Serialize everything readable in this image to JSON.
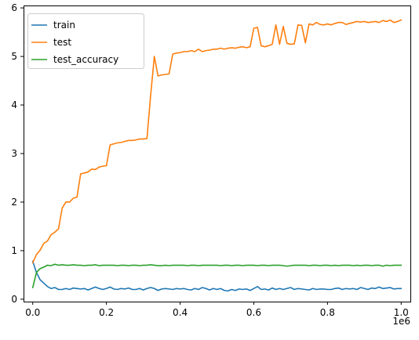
{
  "chart_data": {
    "type": "line",
    "title": "",
    "xlabel": "",
    "ylabel": "",
    "x_offset_label": "1e6",
    "xlim": [
      -25000,
      1025000
    ],
    "ylim": [
      -0.05,
      6.05
    ],
    "xticks": [
      {
        "value": 0,
        "label": "0.0"
      },
      {
        "value": 200000,
        "label": "0.2"
      },
      {
        "value": 400000,
        "label": "0.4"
      },
      {
        "value": 600000,
        "label": "0.6"
      },
      {
        "value": 800000,
        "label": "0.8"
      },
      {
        "value": 1000000,
        "label": "1.0"
      }
    ],
    "yticks": [
      {
        "value": 0,
        "label": "0"
      },
      {
        "value": 1,
        "label": "1"
      },
      {
        "value": 2,
        "label": "2"
      },
      {
        "value": 3,
        "label": "3"
      },
      {
        "value": 4,
        "label": "4"
      },
      {
        "value": 5,
        "label": "5"
      },
      {
        "value": 6,
        "label": "6"
      }
    ],
    "grid": false,
    "legend_position": "upper-left",
    "x": [
      0,
      10000,
      20000,
      30000,
      40000,
      50000,
      60000,
      70000,
      80000,
      90000,
      100000,
      110000,
      120000,
      130000,
      140000,
      150000,
      160000,
      170000,
      180000,
      190000,
      200000,
      210000,
      220000,
      230000,
      240000,
      250000,
      260000,
      270000,
      280000,
      290000,
      300000,
      310000,
      320000,
      330000,
      340000,
      350000,
      360000,
      370000,
      380000,
      390000,
      400000,
      410000,
      420000,
      430000,
      440000,
      450000,
      460000,
      470000,
      480000,
      490000,
      500000,
      510000,
      520000,
      530000,
      540000,
      550000,
      560000,
      570000,
      580000,
      590000,
      600000,
      610000,
      620000,
      630000,
      640000,
      650000,
      660000,
      670000,
      680000,
      690000,
      700000,
      710000,
      720000,
      730000,
      740000,
      750000,
      760000,
      770000,
      780000,
      790000,
      800000,
      810000,
      820000,
      830000,
      840000,
      850000,
      860000,
      870000,
      880000,
      890000,
      900000,
      910000,
      920000,
      930000,
      940000,
      950000,
      960000,
      970000,
      980000,
      990000,
      1000000
    ],
    "series": [
      {
        "name": "train",
        "color": "#1f77b4",
        "values": [
          0.78,
          0.55,
          0.4,
          0.33,
          0.26,
          0.22,
          0.24,
          0.2,
          0.2,
          0.22,
          0.2,
          0.23,
          0.22,
          0.21,
          0.22,
          0.19,
          0.22,
          0.25,
          0.22,
          0.2,
          0.22,
          0.25,
          0.21,
          0.2,
          0.22,
          0.21,
          0.23,
          0.2,
          0.2,
          0.22,
          0.19,
          0.22,
          0.24,
          0.22,
          0.18,
          0.21,
          0.22,
          0.21,
          0.2,
          0.22,
          0.21,
          0.22,
          0.2,
          0.19,
          0.22,
          0.2,
          0.24,
          0.22,
          0.19,
          0.22,
          0.2,
          0.22,
          0.18,
          0.17,
          0.2,
          0.18,
          0.21,
          0.2,
          0.21,
          0.18,
          0.22,
          0.26,
          0.2,
          0.21,
          0.19,
          0.23,
          0.2,
          0.22,
          0.2,
          0.22,
          0.24,
          0.2,
          0.22,
          0.21,
          0.2,
          0.19,
          0.22,
          0.2,
          0.21,
          0.21,
          0.2,
          0.2,
          0.22,
          0.23,
          0.2,
          0.22,
          0.21,
          0.22,
          0.2,
          0.24,
          0.22,
          0.2,
          0.23,
          0.22,
          0.25,
          0.22,
          0.23,
          0.24,
          0.21,
          0.22,
          0.22
        ]
      },
      {
        "name": "test",
        "color": "#ff7f0e",
        "values": [
          0.75,
          0.92,
          1.01,
          1.15,
          1.2,
          1.33,
          1.38,
          1.45,
          1.88,
          2.0,
          2.0,
          2.08,
          2.1,
          2.58,
          2.6,
          2.62,
          2.68,
          2.67,
          2.72,
          2.74,
          2.75,
          3.18,
          3.2,
          3.22,
          3.23,
          3.25,
          3.27,
          3.27,
          3.28,
          3.3,
          3.3,
          3.31,
          4.2,
          5.0,
          4.6,
          4.62,
          4.63,
          4.64,
          5.05,
          5.07,
          5.08,
          5.1,
          5.1,
          5.12,
          5.1,
          5.15,
          5.1,
          5.12,
          5.13,
          5.15,
          5.15,
          5.17,
          5.15,
          5.17,
          5.18,
          5.17,
          5.19,
          5.2,
          5.18,
          5.2,
          5.58,
          5.6,
          5.22,
          5.2,
          5.22,
          5.25,
          5.65,
          5.25,
          5.62,
          5.27,
          5.25,
          5.26,
          5.65,
          5.64,
          5.28,
          5.67,
          5.65,
          5.7,
          5.66,
          5.65,
          5.67,
          5.65,
          5.68,
          5.7,
          5.7,
          5.66,
          5.68,
          5.7,
          5.72,
          5.71,
          5.72,
          5.7,
          5.71,
          5.72,
          5.7,
          5.74,
          5.72,
          5.75,
          5.7,
          5.72,
          5.75
        ]
      },
      {
        "name": "test_accuracy",
        "color": "#2ca02c",
        "values": [
          0.24,
          0.55,
          0.63,
          0.66,
          0.7,
          0.69,
          0.72,
          0.7,
          0.71,
          0.7,
          0.7,
          0.71,
          0.7,
          0.7,
          0.69,
          0.7,
          0.7,
          0.71,
          0.69,
          0.7,
          0.7,
          0.7,
          0.7,
          0.69,
          0.7,
          0.7,
          0.69,
          0.7,
          0.7,
          0.69,
          0.7,
          0.7,
          0.71,
          0.7,
          0.69,
          0.69,
          0.7,
          0.69,
          0.7,
          0.7,
          0.7,
          0.7,
          0.69,
          0.7,
          0.7,
          0.69,
          0.7,
          0.7,
          0.7,
          0.7,
          0.7,
          0.69,
          0.7,
          0.7,
          0.69,
          0.7,
          0.7,
          0.69,
          0.7,
          0.7,
          0.7,
          0.69,
          0.7,
          0.7,
          0.69,
          0.7,
          0.7,
          0.7,
          0.69,
          0.68,
          0.69,
          0.7,
          0.7,
          0.7,
          0.7,
          0.69,
          0.7,
          0.7,
          0.69,
          0.7,
          0.7,
          0.69,
          0.7,
          0.69,
          0.7,
          0.7,
          0.7,
          0.69,
          0.7,
          0.69,
          0.7,
          0.7,
          0.69,
          0.7,
          0.7,
          0.68,
          0.7,
          0.69,
          0.7,
          0.7,
          0.7
        ]
      }
    ]
  }
}
